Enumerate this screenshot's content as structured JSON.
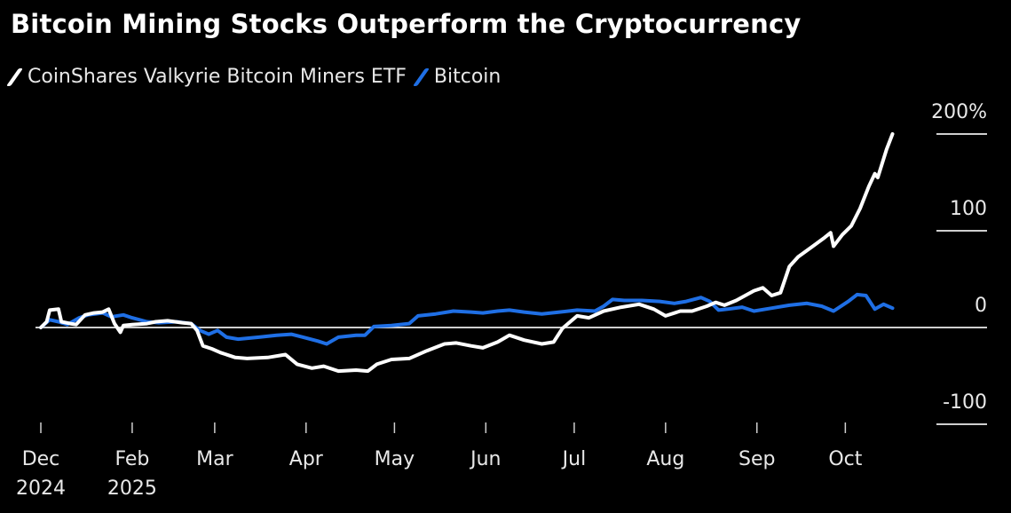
{
  "chart_data": {
    "type": "line",
    "title": "Bitcoin Mining Stocks Outperform the Cryptocurrency",
    "ylim": [
      -100,
      200
    ],
    "y_unit": "%",
    "grid": false,
    "legend_placement": "top-left",
    "y_ticks": [
      {
        "value": 200,
        "label": "200%"
      },
      {
        "value": 100,
        "label": "100"
      },
      {
        "value": 0,
        "label": "0"
      },
      {
        "value": -100,
        "label": "-100"
      }
    ],
    "x_ticks": [
      {
        "date": "2024-12-31",
        "label": "Dec",
        "label2": "2024"
      },
      {
        "date": "2025-01-31",
        "label": "Feb",
        "label2": "2025"
      },
      {
        "date": "2025-02-28",
        "label": "Mar"
      },
      {
        "date": "2025-03-31",
        "label": "Apr"
      },
      {
        "date": "2025-04-30",
        "label": "May"
      },
      {
        "date": "2025-05-31",
        "label": "Jun"
      },
      {
        "date": "2025-06-30",
        "label": "Jul"
      },
      {
        "date": "2025-07-31",
        "label": "Aug"
      },
      {
        "date": "2025-08-31",
        "label": "Sep"
      },
      {
        "date": "2025-09-30",
        "label": "Oct"
      }
    ],
    "series": [
      {
        "name": "CoinShares Valkyrie Bitcoin Miners ETF",
        "color": "#ffffff",
        "points": [
          [
            "2024-12-31",
            0
          ],
          [
            "2025-01-02",
            6
          ],
          [
            "2025-01-03",
            18
          ],
          [
            "2025-01-06",
            19
          ],
          [
            "2025-01-07",
            6
          ],
          [
            "2025-01-10",
            4
          ],
          [
            "2025-01-12",
            3
          ],
          [
            "2025-01-15",
            13
          ],
          [
            "2025-01-18",
            15
          ],
          [
            "2025-01-21",
            16
          ],
          [
            "2025-01-23",
            19
          ],
          [
            "2025-01-25",
            4
          ],
          [
            "2025-01-27",
            -5
          ],
          [
            "2025-01-28",
            2
          ],
          [
            "2025-01-31",
            3
          ],
          [
            "2025-02-05",
            4
          ],
          [
            "2025-02-08",
            6
          ],
          [
            "2025-02-12",
            7
          ],
          [
            "2025-02-17",
            5
          ],
          [
            "2025-02-20",
            4
          ],
          [
            "2025-02-22",
            -3
          ],
          [
            "2025-02-24",
            -19
          ],
          [
            "2025-02-27",
            -22
          ],
          [
            "2025-03-02",
            -26
          ],
          [
            "2025-03-07",
            -31
          ],
          [
            "2025-03-11",
            -32
          ],
          [
            "2025-03-18",
            -31
          ],
          [
            "2025-03-24",
            -28
          ],
          [
            "2025-03-28",
            -38
          ],
          [
            "2025-04-02",
            -42
          ],
          [
            "2025-04-06",
            -40
          ],
          [
            "2025-04-11",
            -45
          ],
          [
            "2025-04-17",
            -44
          ],
          [
            "2025-04-21",
            -45
          ],
          [
            "2025-04-24",
            -38
          ],
          [
            "2025-04-29",
            -33
          ],
          [
            "2025-05-05",
            -32
          ],
          [
            "2025-05-11",
            -24
          ],
          [
            "2025-05-17",
            -17
          ],
          [
            "2025-05-21",
            -16
          ],
          [
            "2025-05-26",
            -19
          ],
          [
            "2025-05-30",
            -21
          ],
          [
            "2025-06-04",
            -15
          ],
          [
            "2025-06-08",
            -8
          ],
          [
            "2025-06-13",
            -13
          ],
          [
            "2025-06-19",
            -17
          ],
          [
            "2025-06-23",
            -15
          ],
          [
            "2025-06-26",
            -1
          ],
          [
            "2025-07-01",
            12
          ],
          [
            "2025-07-05",
            10
          ],
          [
            "2025-07-10",
            17
          ],
          [
            "2025-07-16",
            21
          ],
          [
            "2025-07-22",
            24
          ],
          [
            "2025-07-27",
            19
          ],
          [
            "2025-07-31",
            12
          ],
          [
            "2025-08-05",
            17
          ],
          [
            "2025-08-09",
            17
          ],
          [
            "2025-08-14",
            22
          ],
          [
            "2025-08-17",
            26
          ],
          [
            "2025-08-20",
            23
          ],
          [
            "2025-08-24",
            28
          ],
          [
            "2025-08-30",
            38
          ],
          [
            "2025-09-02",
            41
          ],
          [
            "2025-09-05",
            33
          ],
          [
            "2025-09-08",
            36
          ],
          [
            "2025-09-11",
            63
          ],
          [
            "2025-09-14",
            73
          ],
          [
            "2025-09-19",
            84
          ],
          [
            "2025-09-23",
            93
          ],
          [
            "2025-09-25",
            98
          ],
          [
            "2025-09-26",
            84
          ],
          [
            "2025-09-29",
            96
          ],
          [
            "2025-10-02",
            105
          ],
          [
            "2025-10-05",
            123
          ],
          [
            "2025-10-08",
            146
          ],
          [
            "2025-10-10",
            159
          ],
          [
            "2025-10-11",
            155
          ],
          [
            "2025-10-14",
            184
          ],
          [
            "2025-10-16",
            200
          ]
        ]
      },
      {
        "name": "Bitcoin",
        "color": "#1f6fe5",
        "points": [
          [
            "2024-12-31",
            0
          ],
          [
            "2025-01-03",
            8
          ],
          [
            "2025-01-06",
            6
          ],
          [
            "2025-01-09",
            3
          ],
          [
            "2025-01-13",
            10
          ],
          [
            "2025-01-16",
            13
          ],
          [
            "2025-01-21",
            15
          ],
          [
            "2025-01-24",
            11
          ],
          [
            "2025-01-28",
            13
          ],
          [
            "2025-01-31",
            10
          ],
          [
            "2025-02-05",
            6
          ],
          [
            "2025-02-09",
            5
          ],
          [
            "2025-02-15",
            6
          ],
          [
            "2025-02-20",
            4
          ],
          [
            "2025-02-23",
            -3
          ],
          [
            "2025-02-26",
            -7
          ],
          [
            "2025-03-01",
            -3
          ],
          [
            "2025-03-04",
            -10
          ],
          [
            "2025-03-08",
            -12
          ],
          [
            "2025-03-15",
            -10
          ],
          [
            "2025-03-21",
            -8
          ],
          [
            "2025-03-26",
            -7
          ],
          [
            "2025-03-30",
            -10
          ],
          [
            "2025-04-04",
            -14
          ],
          [
            "2025-04-07",
            -17
          ],
          [
            "2025-04-11",
            -10
          ],
          [
            "2025-04-17",
            -8
          ],
          [
            "2025-04-20",
            -8
          ],
          [
            "2025-04-23",
            1
          ],
          [
            "2025-04-29",
            2
          ],
          [
            "2025-05-05",
            4
          ],
          [
            "2025-05-08",
            12
          ],
          [
            "2025-05-14",
            14
          ],
          [
            "2025-05-20",
            17
          ],
          [
            "2025-05-26",
            16
          ],
          [
            "2025-05-30",
            15
          ],
          [
            "2025-06-04",
            17
          ],
          [
            "2025-06-08",
            18
          ],
          [
            "2025-06-13",
            16
          ],
          [
            "2025-06-19",
            14
          ],
          [
            "2025-06-25",
            16
          ],
          [
            "2025-07-01",
            18
          ],
          [
            "2025-07-07",
            17
          ],
          [
            "2025-07-10",
            22
          ],
          [
            "2025-07-13",
            29
          ],
          [
            "2025-07-17",
            28
          ],
          [
            "2025-07-23",
            28
          ],
          [
            "2025-07-29",
            27
          ],
          [
            "2025-08-03",
            25
          ],
          [
            "2025-08-07",
            27
          ],
          [
            "2025-08-12",
            31
          ],
          [
            "2025-08-15",
            27
          ],
          [
            "2025-08-18",
            18
          ],
          [
            "2025-08-21",
            19
          ],
          [
            "2025-08-26",
            21
          ],
          [
            "2025-08-30",
            17
          ],
          [
            "2025-09-05",
            20
          ],
          [
            "2025-09-11",
            23
          ],
          [
            "2025-09-17",
            25
          ],
          [
            "2025-09-22",
            22
          ],
          [
            "2025-09-26",
            17
          ],
          [
            "2025-10-01",
            27
          ],
          [
            "2025-10-04",
            34
          ],
          [
            "2025-10-07",
            33
          ],
          [
            "2025-10-10",
            19
          ],
          [
            "2025-10-13",
            24
          ],
          [
            "2025-10-16",
            20
          ]
        ]
      }
    ]
  }
}
